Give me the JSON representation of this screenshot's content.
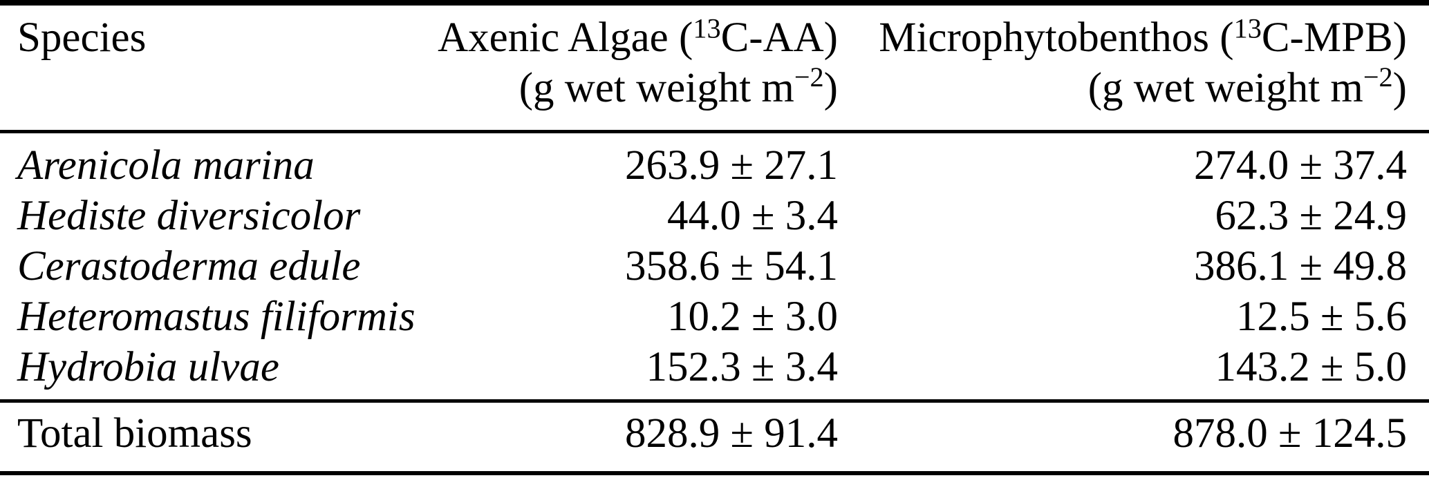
{
  "table": {
    "columns": {
      "species": {
        "label": "Species"
      },
      "aa": {
        "title": {
          "pre": "Axenic Algae (",
          "sup": "13",
          "post": "C-AA)"
        },
        "unit": {
          "pre": "(g wet weight m",
          "sup": "−2",
          "post": ")"
        }
      },
      "mpb": {
        "title": {
          "pre": "Microphytobenthos (",
          "sup": "13",
          "post": "C-MPB)"
        },
        "unit": {
          "pre": "(g wet weight m",
          "sup": "−2",
          "post": ")"
        }
      }
    },
    "rows": [
      {
        "species": "Arenicola marina",
        "aa": "263.9 ± 27.1",
        "mpb": "274.0 ± 37.4"
      },
      {
        "species": "Hediste diversicolor",
        "aa": "44.0 ± 3.4",
        "mpb": "62.3 ± 24.9"
      },
      {
        "species": "Cerastoderma edule",
        "aa": "358.6 ± 54.1",
        "mpb": "386.1 ± 49.8"
      },
      {
        "species": "Heteromastus filiformis",
        "aa": "10.2 ± 3.0",
        "mpb": "12.5 ± 5.6"
      },
      {
        "species": "Hydrobia ulvae",
        "aa": "152.3 ± 3.4",
        "mpb": "143.2 ± 5.0"
      }
    ],
    "footer": {
      "label": "Total biomass",
      "aa": "828.9 ± 91.4",
      "mpb": "878.0 ± 124.5"
    }
  },
  "colors": {
    "background": "#ffffff",
    "text": "#000000",
    "rule": "#000000"
  }
}
